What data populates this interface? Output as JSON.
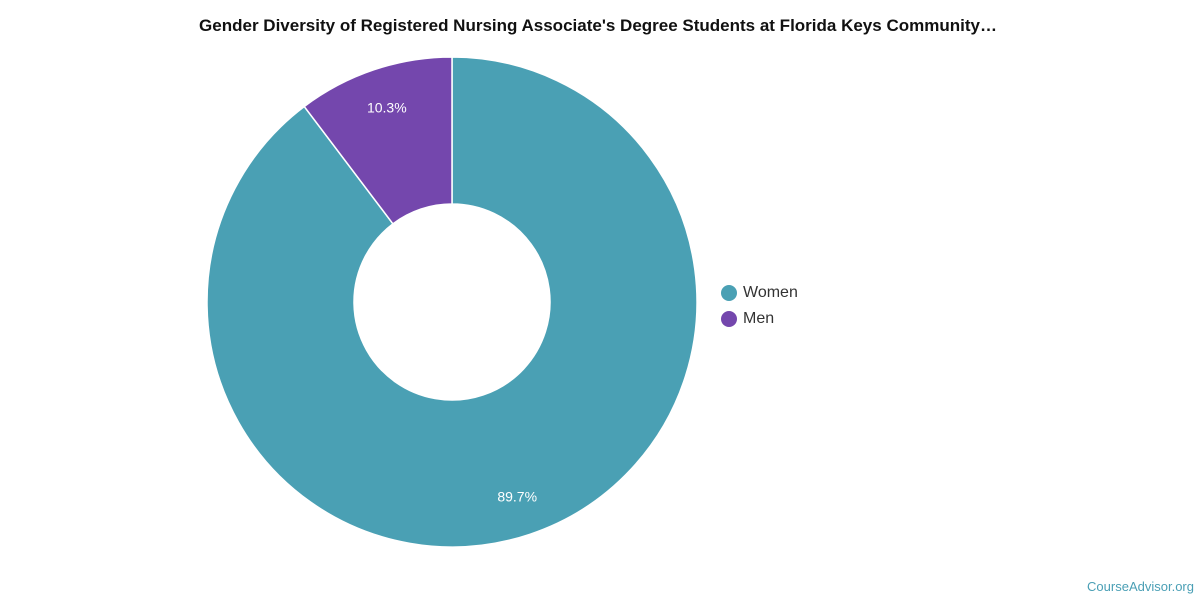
{
  "chart_data": {
    "type": "pie",
    "title": "Gender Diversity of Registered Nursing Associate's Degree Students at Florida Keys Community…",
    "categories": [
      "Women",
      "Men"
    ],
    "values": [
      89.7,
      10.3
    ],
    "labels": [
      "89.7%",
      "10.3%"
    ],
    "colors": [
      "#4aa0b4",
      "#7447ad"
    ],
    "donut": true,
    "legend_position": "right"
  },
  "watermark": "CourseAdvisor.org"
}
